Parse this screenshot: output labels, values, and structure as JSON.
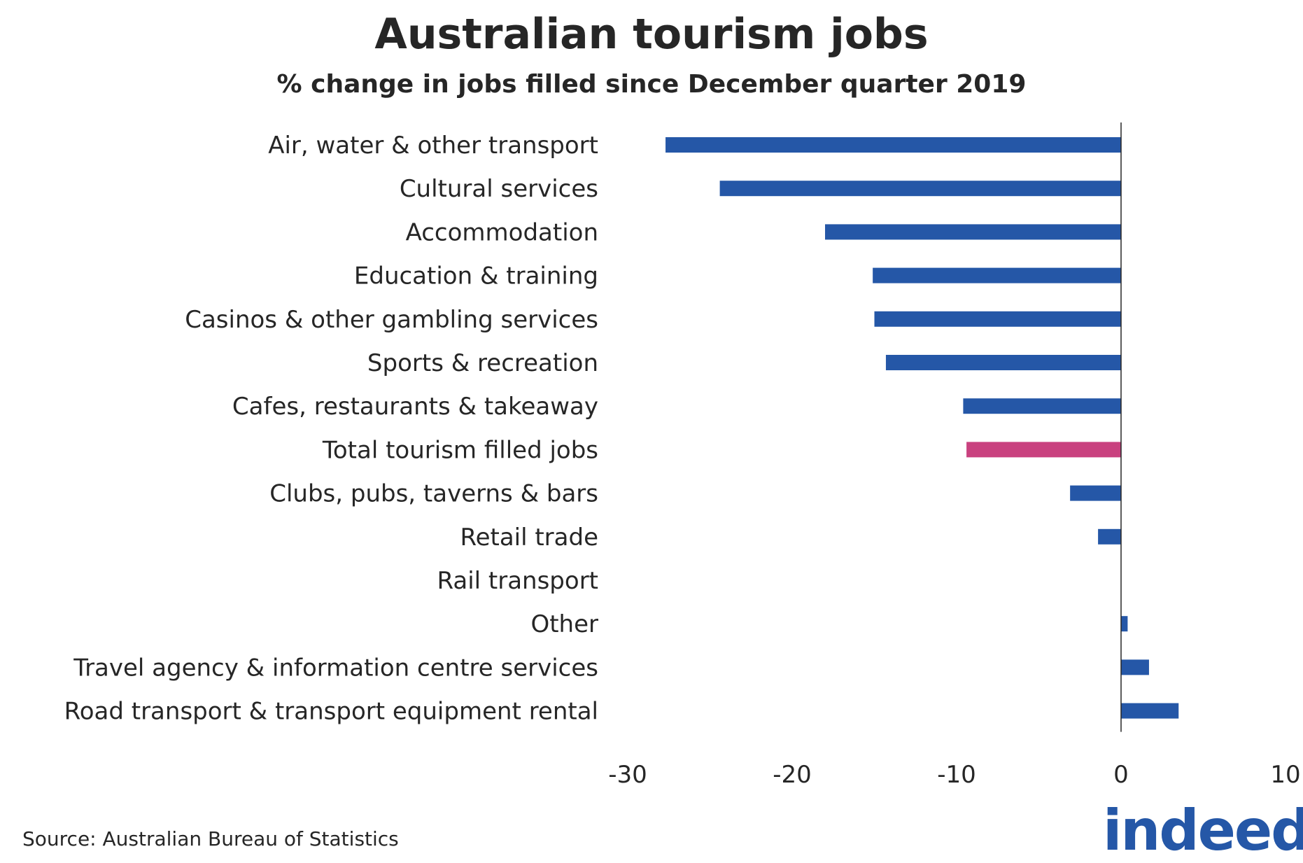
{
  "chart_data": {
    "type": "bar",
    "orientation": "horizontal",
    "title": "Australian tourism jobs",
    "subtitle": "% change in jobs filled since December quarter 2019",
    "categories": [
      "Air, water &  other transport",
      "Cultural services",
      "Accommodation",
      "Education & training",
      "Casinos & other gambling services",
      "Sports & recreation",
      "Cafes, restaurants & takeaway",
      "Total tourism filled jobs",
      "Clubs, pubs, taverns & bars",
      "Retail trade",
      "Rail transport",
      "Other",
      "Travel agency & information centre services",
      "Road transport &  transport equipment rental"
    ],
    "values": [
      -27.7,
      -24.4,
      -18.0,
      -15.1,
      -15.0,
      -14.3,
      -9.6,
      -9.4,
      -3.1,
      -1.4,
      0.0,
      0.4,
      1.7,
      3.5
    ],
    "highlight_category": "Total tourism filled jobs",
    "xlim": [
      -30,
      10
    ],
    "xticks": [
      "-30",
      "-20",
      "-10",
      "0",
      "10"
    ],
    "xtick_values": [
      -30,
      -20,
      -10,
      0,
      10
    ],
    "xlabel": "",
    "ylabel": "",
    "grid": false,
    "legend": "none",
    "colors": {
      "bar": "#2557a7",
      "highlight": "#c9417f",
      "axis": "#262626",
      "text": "#262626"
    }
  },
  "footer": {
    "source": "Source: Australian Bureau of Statistics",
    "logo_text": "indeed"
  }
}
